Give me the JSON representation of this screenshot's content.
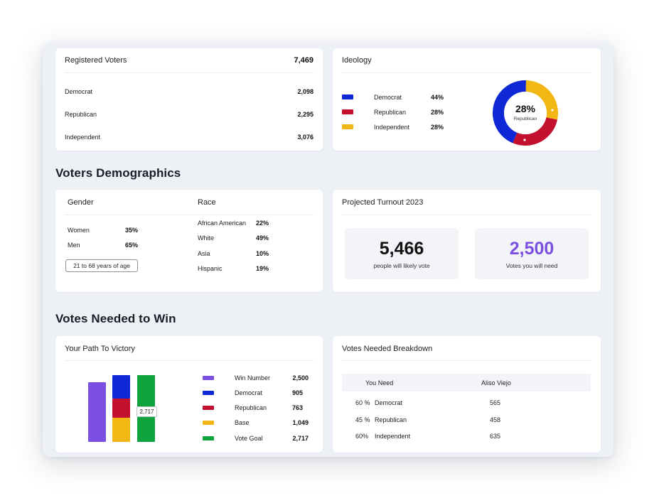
{
  "colors": {
    "democrat": "#0f28d6",
    "republican": "#c4102f",
    "independent": "#f2b713",
    "win": "#7b4fe0",
    "goal": "#10a23d",
    "accent_purple": "#7b4fe0"
  },
  "registered": {
    "title": "Registered Voters",
    "total": "7,469",
    "rows": [
      {
        "label": "Democrat",
        "value": "2,098"
      },
      {
        "label": "Republican",
        "value": "2,295"
      },
      {
        "label": "Independent",
        "value": "3,076"
      }
    ]
  },
  "ideology": {
    "title": "Ideology",
    "rows": [
      {
        "label": "Democrat",
        "pct": "44%",
        "value": 44,
        "color": "#0f28d6"
      },
      {
        "label": "Republican",
        "pct": "28%",
        "value": 28,
        "color": "#c4102f"
      },
      {
        "label": "Independent",
        "pct": "28%",
        "value": 28,
        "color": "#f2b713"
      }
    ],
    "donut_center_value": "28%",
    "donut_center_label": "Republican"
  },
  "demographics": {
    "section_title": "Voters Demographics",
    "gender": {
      "title": "Gender",
      "rows": [
        {
          "label": "Women",
          "pct": "35%"
        },
        {
          "label": "Men",
          "pct": "65%"
        }
      ],
      "age_badge": "21 to 68 years of age"
    },
    "race": {
      "title": "Race",
      "rows": [
        {
          "label": "African American",
          "pct": "22%"
        },
        {
          "label": "White",
          "pct": "49%"
        },
        {
          "label": "Asia",
          "pct": "10%"
        },
        {
          "label": "Hispanic",
          "pct": "19%"
        }
      ]
    }
  },
  "turnout": {
    "title": "Projected Turnout 2023",
    "likely_value": "5,466",
    "likely_caption": "people will likely vote",
    "need_value": "2,500",
    "need_caption": "Votes you will need"
  },
  "votes_needed": {
    "section_title": "Votes Needed to Win",
    "path": {
      "title": "Your Path To Victory",
      "bar_label": "2,717",
      "stack_values": {
        "win": 2500,
        "democrat": 905,
        "republican": 763,
        "base": 1049,
        "goal": 2717
      },
      "legend": [
        {
          "label": "Win Number",
          "value": "2,500",
          "color": "#7b4fe0"
        },
        {
          "label": "Democrat",
          "value": "905",
          "color": "#0f28d6"
        },
        {
          "label": "Republican",
          "value": "763",
          "color": "#c4102f"
        },
        {
          "label": "Base",
          "value": "1,049",
          "color": "#f2b713"
        },
        {
          "label": "Vote Goal",
          "value": "2,717",
          "color": "#10a23d"
        }
      ]
    },
    "breakdown": {
      "title": "Votes Needed Breakdown",
      "col_you_need": "You Need",
      "col_city": "Aliso Viejo",
      "rows": [
        {
          "pct": "60 %",
          "label": "Democrat",
          "value": "565"
        },
        {
          "pct": "45 %",
          "label": "Republican",
          "value": "458"
        },
        {
          "pct": "60%",
          "label": "Independent",
          "value": "635"
        }
      ]
    }
  }
}
